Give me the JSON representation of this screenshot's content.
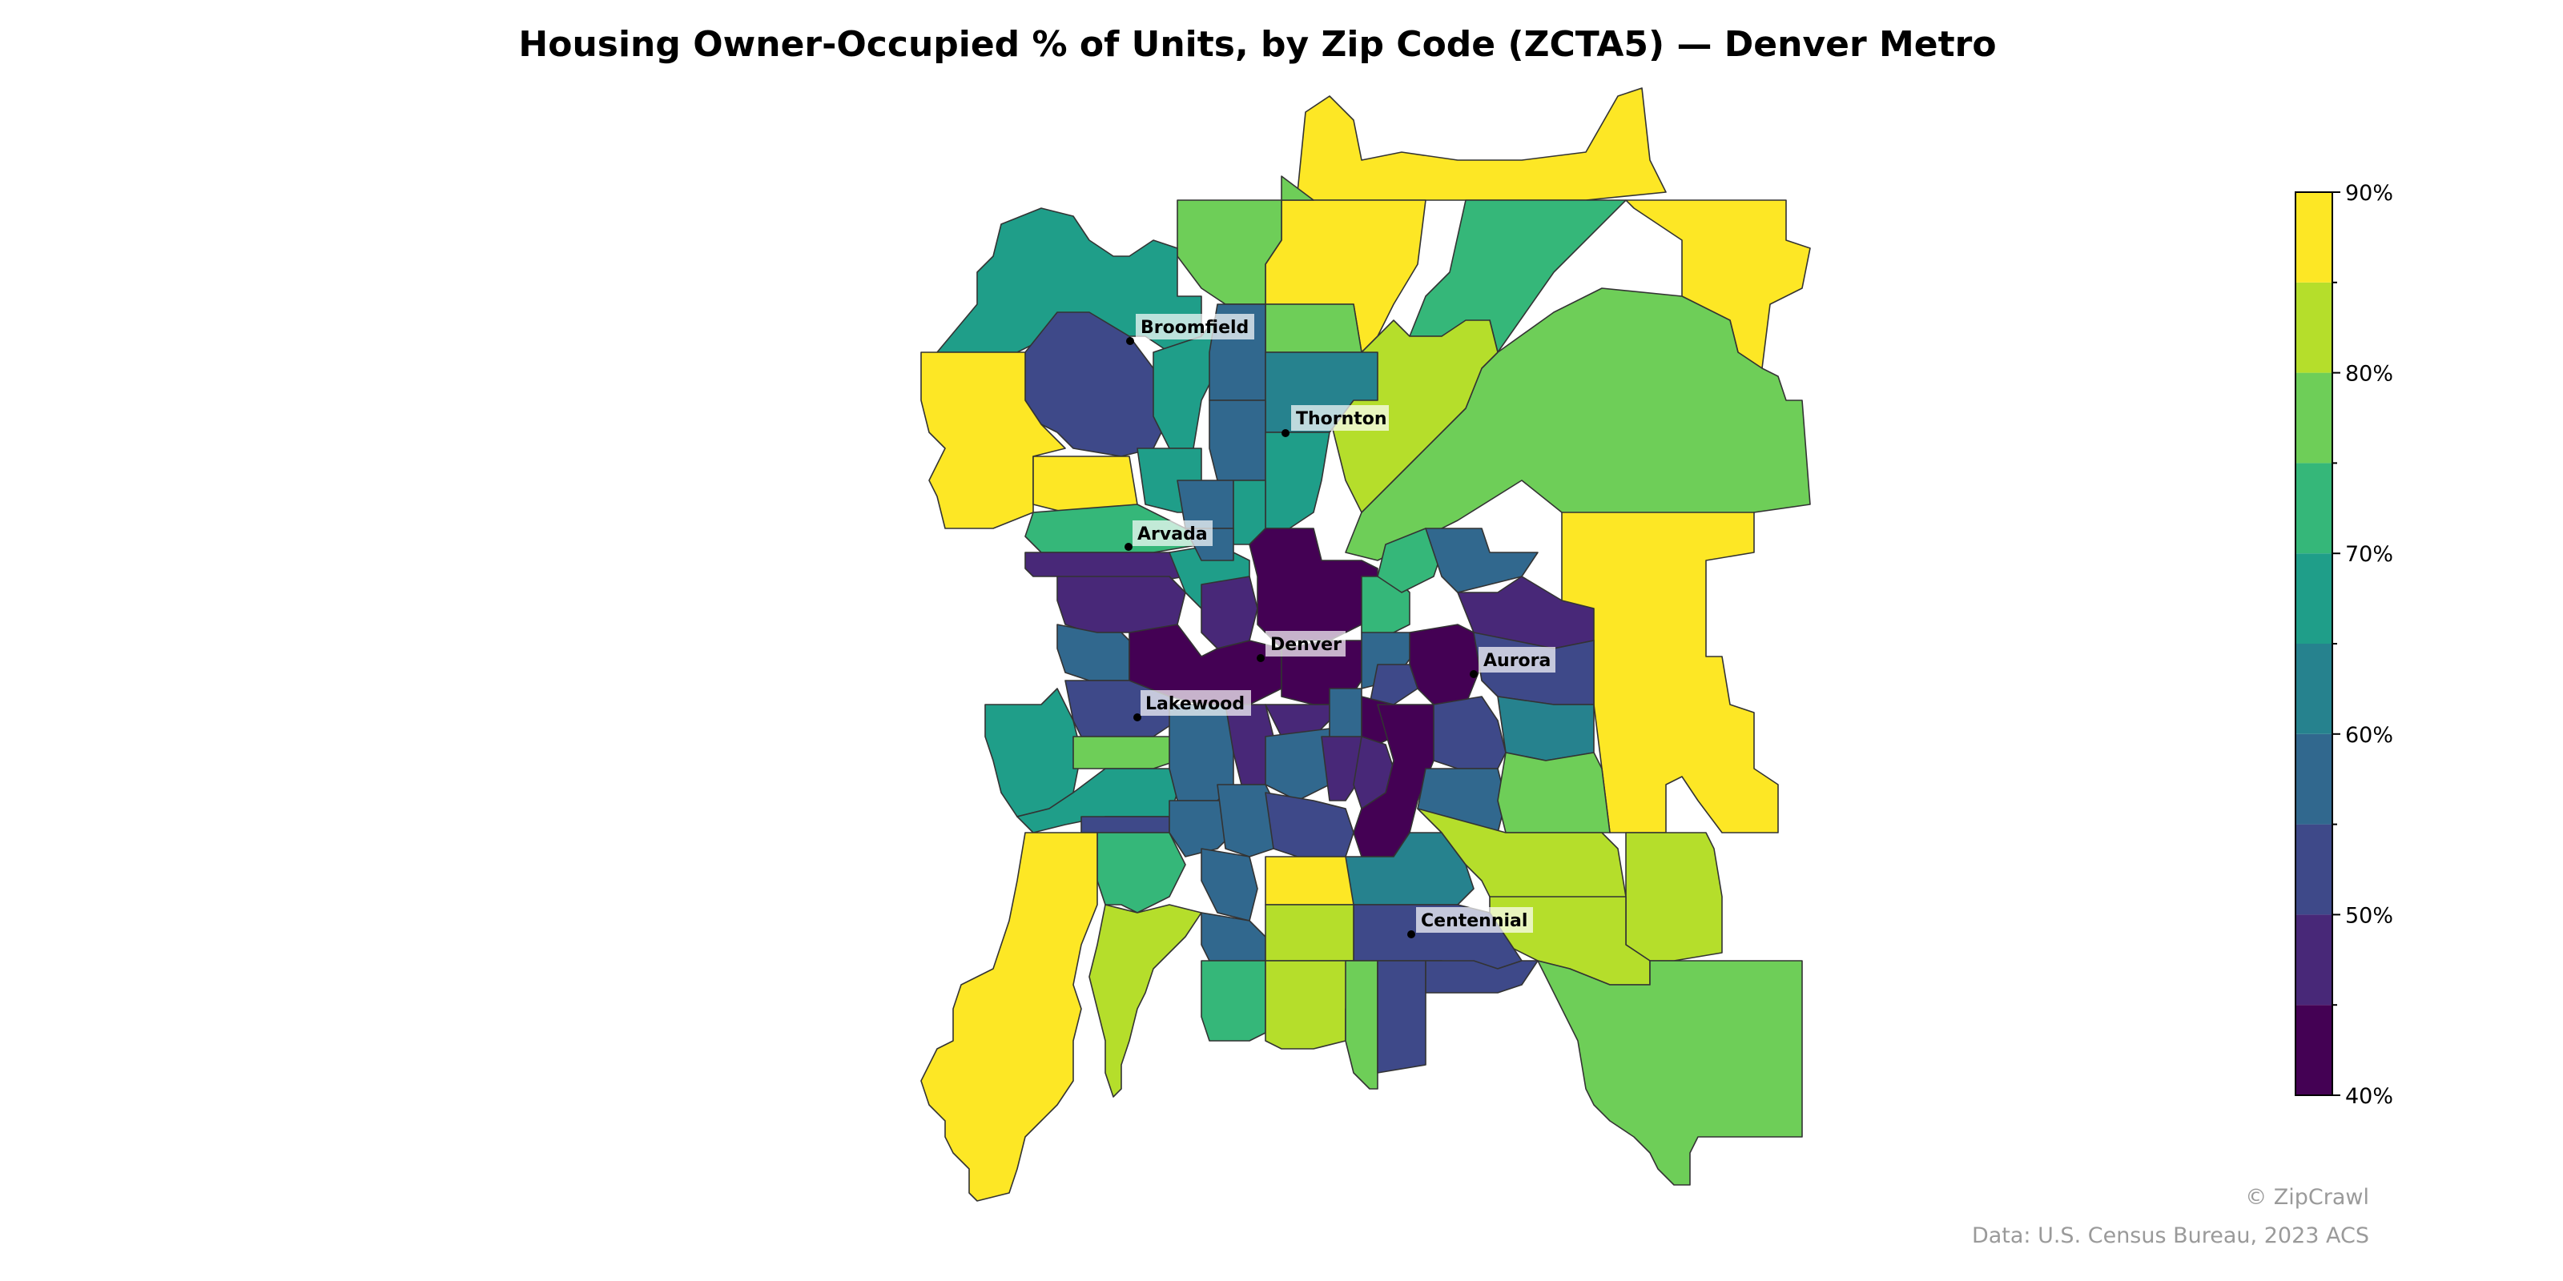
{
  "map": {
    "title": "Housing Owner-Occupied % of Units, by Zip Code (ZCTA5) — Denver Metro",
    "credit": "© ZipCrawl",
    "source": "Data: U.S. Census Bureau, 2023 ACS",
    "metric_unit": "%",
    "palette": {
      "b40": "#440154",
      "b45": "#482878",
      "b50": "#3e4989",
      "b55": "#31688e",
      "b60": "#26828e",
      "b65": "#1f9e89",
      "b70": "#35b779",
      "b75": "#6ece58",
      "b80": "#b5de2b",
      "b85": "#fde725"
    },
    "legend": {
      "min": 40,
      "max": 90,
      "step": 5,
      "tick_labels": [
        "90%",
        "80%",
        "70%",
        "60%",
        "50%",
        "40%"
      ]
    },
    "cities": [
      {
        "name": "Broomfield"
      },
      {
        "name": "Thornton"
      },
      {
        "name": "Arvada"
      },
      {
        "name": "Denver"
      },
      {
        "name": "Aurora"
      },
      {
        "name": "Lakewood"
      },
      {
        "name": "Centennial"
      }
    ]
  }
}
